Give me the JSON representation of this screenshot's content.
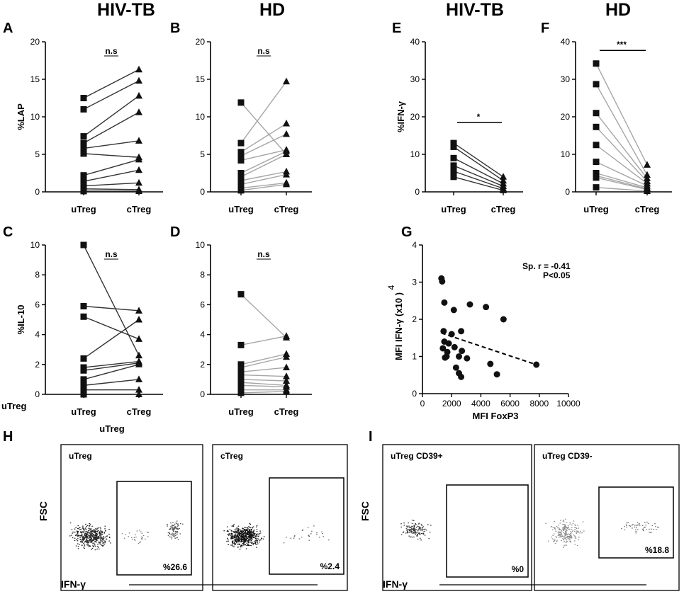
{
  "headers": [
    "HIV-TB",
    "HD",
    "HIV-TB",
    "HD"
  ],
  "stray_labels": {
    "left": "uTreg",
    "bottom": "uTreg"
  },
  "colors": {
    "dark": "#333333",
    "light": "#a6a6a6",
    "black": "#000000"
  },
  "chart_data": [
    {
      "id": "A",
      "type": "line",
      "panel_label": "A",
      "ylabel": "%LAP",
      "categories": [
        "uTreg",
        "cTreg"
      ],
      "ylim": [
        0,
        20
      ],
      "yticks": [
        0,
        5,
        10,
        15,
        20
      ],
      "significance": "n.s",
      "sig_style": "text",
      "line_color": "dark",
      "pairs": [
        [
          12.5,
          16.3
        ],
        [
          11.0,
          14.8
        ],
        [
          7.4,
          12.8
        ],
        [
          6.5,
          10.6
        ],
        [
          5.8,
          6.8
        ],
        [
          5.1,
          4.6
        ],
        [
          2.2,
          4.3
        ],
        [
          1.4,
          2.9
        ],
        [
          0.8,
          1.2
        ],
        [
          0.4,
          0.3
        ],
        [
          0.1,
          0.1
        ]
      ]
    },
    {
      "id": "B",
      "type": "line",
      "panel_label": "B",
      "ylabel": "",
      "categories": [
        "uTreg",
        "cTreg"
      ],
      "ylim": [
        0,
        20
      ],
      "yticks": [
        0,
        5,
        10,
        15,
        20
      ],
      "significance": "n.s",
      "sig_style": "text",
      "line_color": "light",
      "pairs": [
        [
          11.9,
          5.0
        ],
        [
          6.5,
          14.7
        ],
        [
          5.3,
          9.1
        ],
        [
          4.8,
          7.7
        ],
        [
          4.2,
          5.6
        ],
        [
          2.5,
          5.4
        ],
        [
          2.0,
          5.0
        ],
        [
          1.5,
          2.7
        ],
        [
          1.0,
          2.3
        ],
        [
          0.5,
          1.2
        ],
        [
          0.2,
          1.0
        ]
      ]
    },
    {
      "id": "C",
      "type": "line",
      "panel_label": "C",
      "ylabel": "%IL-10",
      "categories": [
        "uTreg",
        "cTreg"
      ],
      "ylim": [
        0,
        10
      ],
      "yticks": [
        0,
        2,
        4,
        6,
        8,
        10
      ],
      "significance": "n.s",
      "sig_style": "text",
      "line_color": "dark",
      "pairs": [
        [
          10.0,
          2.6
        ],
        [
          5.9,
          5.6
        ],
        [
          5.2,
          3.7
        ],
        [
          2.4,
          5.0
        ],
        [
          1.8,
          2.2
        ],
        [
          1.6,
          2.1
        ],
        [
          1.0,
          2.0
        ],
        [
          0.6,
          1.0
        ],
        [
          0.3,
          0.3
        ],
        [
          0.0,
          0.0
        ]
      ]
    },
    {
      "id": "D",
      "type": "line",
      "panel_label": "D",
      "ylabel": "",
      "categories": [
        "uTreg",
        "cTreg"
      ],
      "ylim": [
        0,
        10
      ],
      "yticks": [
        0,
        2,
        4,
        6,
        8,
        10
      ],
      "significance": "n.s",
      "sig_style": "text",
      "line_color": "light",
      "pairs": [
        [
          6.7,
          3.8
        ],
        [
          3.3,
          3.9
        ],
        [
          2.0,
          2.7
        ],
        [
          1.8,
          2.5
        ],
        [
          1.5,
          1.8
        ],
        [
          1.3,
          1.2
        ],
        [
          1.0,
          0.9
        ],
        [
          0.8,
          0.6
        ],
        [
          0.6,
          0.5
        ],
        [
          0.3,
          0.3
        ],
        [
          0.1,
          0.2
        ]
      ]
    },
    {
      "id": "E",
      "type": "line",
      "panel_label": "E",
      "ylabel": "%IFN-γ",
      "categories": [
        "uTreg",
        "cTreg"
      ],
      "ylim": [
        0,
        40
      ],
      "yticks": [
        0,
        10,
        20,
        30,
        40
      ],
      "significance": "*",
      "sig_style": "bar",
      "line_color": "dark",
      "pairs": [
        [
          13.0,
          4.0
        ],
        [
          12.0,
          3.0
        ],
        [
          9.0,
          2.2
        ],
        [
          7.0,
          1.5
        ],
        [
          5.5,
          0.9
        ],
        [
          4.0,
          0.4
        ]
      ]
    },
    {
      "id": "F",
      "type": "line",
      "panel_label": "F",
      "ylabel": "",
      "categories": [
        "uTreg",
        "cTreg"
      ],
      "ylim": [
        0,
        40
      ],
      "yticks": [
        0,
        10,
        20,
        30,
        40
      ],
      "significance": "***",
      "sig_style": "bar",
      "line_color": "light",
      "pairs": [
        [
          34.2,
          7.2
        ],
        [
          28.7,
          4.5
        ],
        [
          21.0,
          3.6
        ],
        [
          17.3,
          2.8
        ],
        [
          12.5,
          2.2
        ],
        [
          8.0,
          1.6
        ],
        [
          5.0,
          1.1
        ],
        [
          4.3,
          0.8
        ],
        [
          3.8,
          0.6
        ],
        [
          1.2,
          0.2
        ]
      ]
    },
    {
      "id": "G",
      "type": "scatter",
      "panel_label": "G",
      "xlabel": "MFI FoxP3",
      "ylabel_main": "MFI IFN-γ (x10 )",
      "ylabel_exp": "4",
      "xlim": [
        0,
        10000
      ],
      "ylim": [
        0,
        4
      ],
      "xticks": [
        0,
        2000,
        4000,
        6000,
        8000,
        10000
      ],
      "yticks": [
        0,
        1,
        2,
        3,
        4
      ],
      "annotation_r": "Sp. r = -0.41",
      "annotation_p": "P<0.05",
      "points": [
        [
          1300,
          3.1
        ],
        [
          1350,
          3.02
        ],
        [
          1500,
          2.45
        ],
        [
          1450,
          1.68
        ],
        [
          1500,
          1.4
        ],
        [
          1400,
          1.22
        ],
        [
          1700,
          1.12
        ],
        [
          1550,
          0.97
        ],
        [
          1650,
          1.0
        ],
        [
          1800,
          1.35
        ],
        [
          2000,
          1.6
        ],
        [
          2150,
          2.25
        ],
        [
          2200,
          1.25
        ],
        [
          2300,
          0.7
        ],
        [
          2500,
          1.0
        ],
        [
          2650,
          1.68
        ],
        [
          2500,
          0.55
        ],
        [
          2700,
          1.15
        ],
        [
          2650,
          0.45
        ],
        [
          3050,
          0.95
        ],
        [
          3250,
          2.4
        ],
        [
          4350,
          2.33
        ],
        [
          4650,
          0.8
        ],
        [
          5100,
          0.52
        ],
        [
          5550,
          2.0
        ],
        [
          7800,
          0.78
        ]
      ],
      "trend": {
        "x1": 1300,
        "y1": 1.63,
        "x2": 7800,
        "y2": 0.78
      }
    }
  ],
  "flow": {
    "H": {
      "panel_label": "H",
      "ylabel": "FSC",
      "xlabel": "IFN-γ",
      "plots": [
        {
          "title": "uTreg",
          "percent": "%26.6"
        },
        {
          "title": "cTreg",
          "percent": "%2.4"
        }
      ]
    },
    "I": {
      "panel_label": "I",
      "ylabel": "FSC",
      "xlabel": "IFN-γ",
      "plots": [
        {
          "title": "uTreg CD39+",
          "percent": "%0"
        },
        {
          "title": "uTreg CD39-",
          "percent": "%18.8"
        }
      ]
    }
  }
}
